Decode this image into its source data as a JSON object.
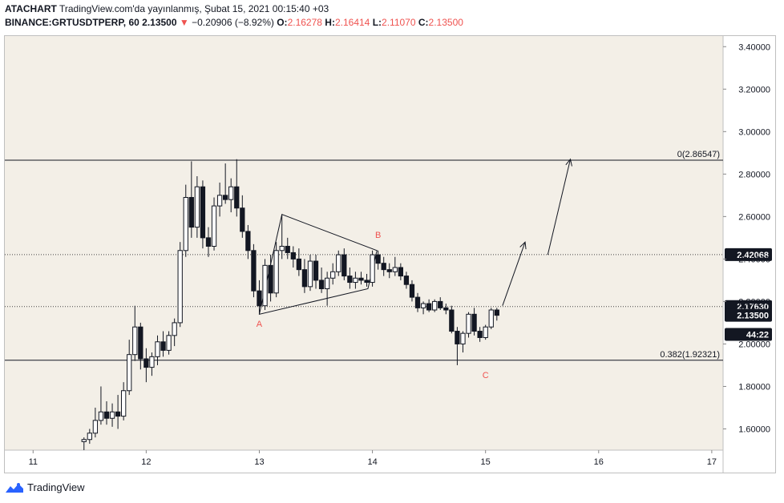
{
  "header": {
    "author": "ATACHART",
    "publish_text": "TradingView.com'da yayınlanmış, Şubat 15, 2021 00:15:40 +03",
    "symbol": "BINANCE:GRTUSDTPERP, 60",
    "last": "2.13500",
    "change": "−0.20906 (−8.92%)",
    "o_label": "O:",
    "o_val": "2.16278",
    "h_label": "H:",
    "h_val": "2.16414",
    "l_label": "L:",
    "l_val": "2.11070",
    "c_label": "C:",
    "c_val": "2.13500"
  },
  "footer": {
    "brand": "TradingView"
  },
  "colors": {
    "background": "#f3efe7",
    "candle_up": "#ffffff",
    "candle_down": "#131722",
    "accent_red": "#ef5350"
  },
  "chart_data": {
    "type": "candlestick",
    "x_ticks": [
      {
        "label": "11",
        "t": 11
      },
      {
        "label": "12",
        "t": 12
      },
      {
        "label": "13",
        "t": 13
      },
      {
        "label": "14",
        "t": 14
      },
      {
        "label": "15",
        "t": 15
      },
      {
        "label": "16",
        "t": 16
      },
      {
        "label": "17",
        "t": 17
      }
    ],
    "y_ticks": [
      "1.60000",
      "1.80000",
      "2.00000",
      "2.20000",
      "2.40000",
      "2.60000",
      "2.80000",
      "3.00000",
      "3.20000",
      "3.40000"
    ],
    "ylim": [
      1.5,
      3.45
    ],
    "xlim": [
      10.75,
      17.1
    ],
    "hlines": [
      {
        "value": 2.86547,
        "style": "solid",
        "label": "0(2.86547)"
      },
      {
        "value": 1.92321,
        "style": "solid",
        "label": "0.382(1.92321)"
      },
      {
        "value": 2.42068,
        "style": "dotted",
        "price_label": "2.42068"
      },
      {
        "value": 2.1763,
        "style": "dotted",
        "price_label": "2.17630"
      }
    ],
    "price_labels": [
      {
        "value": 2.135,
        "label": "2.13500"
      },
      {
        "value": 2.045,
        "label": "44:22",
        "note": "countdown"
      }
    ],
    "wave_labels": [
      {
        "label": "A",
        "t": 13.0,
        "y": 2.08
      },
      {
        "label": "B",
        "t": 14.05,
        "y": 2.5
      },
      {
        "label": "C",
        "t": 15.0,
        "y": 1.84
      }
    ],
    "triangle": [
      {
        "t": 13.0,
        "y": 2.14
      },
      {
        "t": 13.2,
        "y": 2.61
      },
      {
        "t": 14.04,
        "y": 2.44
      },
      {
        "t": 13.96,
        "y": 2.26
      }
    ],
    "projection_arrows": [
      {
        "from": {
          "t": 15.15,
          "y": 2.18
        },
        "to": {
          "t": 15.35,
          "y": 2.48
        }
      },
      {
        "from": {
          "t": 15.55,
          "y": 2.42
        },
        "to": {
          "t": 15.75,
          "y": 2.87
        }
      }
    ],
    "candles": [
      {
        "t": 11.45,
        "o": 1.54,
        "h": 1.56,
        "l": 1.5,
        "c": 1.55
      },
      {
        "t": 11.5,
        "o": 1.55,
        "h": 1.6,
        "l": 1.53,
        "c": 1.58
      },
      {
        "t": 11.55,
        "o": 1.58,
        "h": 1.7,
        "l": 1.56,
        "c": 1.64
      },
      {
        "t": 11.6,
        "o": 1.64,
        "h": 1.8,
        "l": 1.62,
        "c": 1.68
      },
      {
        "t": 11.65,
        "o": 1.68,
        "h": 1.73,
        "l": 1.62,
        "c": 1.65
      },
      {
        "t": 11.7,
        "o": 1.65,
        "h": 1.72,
        "l": 1.61,
        "c": 1.68
      },
      {
        "t": 11.75,
        "o": 1.68,
        "h": 1.76,
        "l": 1.6,
        "c": 1.66
      },
      {
        "t": 11.8,
        "o": 1.66,
        "h": 1.82,
        "l": 1.64,
        "c": 1.78
      },
      {
        "t": 11.85,
        "o": 1.78,
        "h": 2.02,
        "l": 1.76,
        "c": 1.95
      },
      {
        "t": 11.9,
        "o": 1.95,
        "h": 2.18,
        "l": 1.92,
        "c": 2.08
      },
      {
        "t": 11.95,
        "o": 2.08,
        "h": 2.1,
        "l": 1.88,
        "c": 1.93
      },
      {
        "t": 12.0,
        "o": 1.93,
        "h": 1.98,
        "l": 1.82,
        "c": 1.89
      },
      {
        "t": 12.05,
        "o": 1.89,
        "h": 1.96,
        "l": 1.85,
        "c": 1.94
      },
      {
        "t": 12.1,
        "o": 1.94,
        "h": 2.04,
        "l": 1.9,
        "c": 2.01
      },
      {
        "t": 12.15,
        "o": 2.01,
        "h": 2.06,
        "l": 1.94,
        "c": 1.97
      },
      {
        "t": 12.2,
        "o": 1.97,
        "h": 2.06,
        "l": 1.95,
        "c": 2.04
      },
      {
        "t": 12.25,
        "o": 2.04,
        "h": 2.12,
        "l": 1.99,
        "c": 2.1
      },
      {
        "t": 12.3,
        "o": 2.1,
        "h": 2.48,
        "l": 2.08,
        "c": 2.44
      },
      {
        "t": 12.35,
        "o": 2.44,
        "h": 2.75,
        "l": 2.41,
        "c": 2.69
      },
      {
        "t": 12.4,
        "o": 2.69,
        "h": 2.86,
        "l": 2.5,
        "c": 2.55
      },
      {
        "t": 12.45,
        "o": 2.55,
        "h": 2.79,
        "l": 2.5,
        "c": 2.74
      },
      {
        "t": 12.5,
        "o": 2.74,
        "h": 2.77,
        "l": 2.45,
        "c": 2.5
      },
      {
        "t": 12.55,
        "o": 2.5,
        "h": 2.55,
        "l": 2.41,
        "c": 2.46
      },
      {
        "t": 12.6,
        "o": 2.46,
        "h": 2.69,
        "l": 2.44,
        "c": 2.65
      },
      {
        "t": 12.65,
        "o": 2.65,
        "h": 2.76,
        "l": 2.6,
        "c": 2.7
      },
      {
        "t": 12.7,
        "o": 2.7,
        "h": 2.85,
        "l": 2.66,
        "c": 2.68
      },
      {
        "t": 12.75,
        "o": 2.68,
        "h": 2.78,
        "l": 2.62,
        "c": 2.74
      },
      {
        "t": 12.8,
        "o": 2.74,
        "h": 2.87,
        "l": 2.6,
        "c": 2.64
      },
      {
        "t": 12.85,
        "o": 2.64,
        "h": 2.7,
        "l": 2.5,
        "c": 2.53
      },
      {
        "t": 12.9,
        "o": 2.53,
        "h": 2.56,
        "l": 2.4,
        "c": 2.44
      },
      {
        "t": 12.95,
        "o": 2.44,
        "h": 2.47,
        "l": 2.22,
        "c": 2.25
      },
      {
        "t": 13.0,
        "o": 2.25,
        "h": 2.3,
        "l": 2.14,
        "c": 2.18
      },
      {
        "t": 13.05,
        "o": 2.18,
        "h": 2.4,
        "l": 2.16,
        "c": 2.37
      },
      {
        "t": 13.1,
        "o": 2.37,
        "h": 2.42,
        "l": 2.2,
        "c": 2.24
      },
      {
        "t": 13.15,
        "o": 2.24,
        "h": 2.48,
        "l": 2.22,
        "c": 2.44
      },
      {
        "t": 13.2,
        "o": 2.44,
        "h": 2.61,
        "l": 2.4,
        "c": 2.46
      },
      {
        "t": 13.25,
        "o": 2.46,
        "h": 2.5,
        "l": 2.4,
        "c": 2.43
      },
      {
        "t": 13.3,
        "o": 2.43,
        "h": 2.46,
        "l": 2.36,
        "c": 2.4
      },
      {
        "t": 13.35,
        "o": 2.4,
        "h": 2.45,
        "l": 2.32,
        "c": 2.35
      },
      {
        "t": 13.4,
        "o": 2.35,
        "h": 2.4,
        "l": 2.24,
        "c": 2.27
      },
      {
        "t": 13.45,
        "o": 2.27,
        "h": 2.42,
        "l": 2.25,
        "c": 2.39
      },
      {
        "t": 13.5,
        "o": 2.39,
        "h": 2.42,
        "l": 2.26,
        "c": 2.3
      },
      {
        "t": 13.55,
        "o": 2.3,
        "h": 2.36,
        "l": 2.24,
        "c": 2.26
      },
      {
        "t": 13.6,
        "o": 2.26,
        "h": 2.34,
        "l": 2.18,
        "c": 2.31
      },
      {
        "t": 13.65,
        "o": 2.31,
        "h": 2.38,
        "l": 2.28,
        "c": 2.34
      },
      {
        "t": 13.7,
        "o": 2.34,
        "h": 2.44,
        "l": 2.32,
        "c": 2.42
      },
      {
        "t": 13.75,
        "o": 2.42,
        "h": 2.45,
        "l": 2.3,
        "c": 2.32
      },
      {
        "t": 13.8,
        "o": 2.32,
        "h": 2.36,
        "l": 2.26,
        "c": 2.29
      },
      {
        "t": 13.85,
        "o": 2.29,
        "h": 2.34,
        "l": 2.26,
        "c": 2.31
      },
      {
        "t": 13.9,
        "o": 2.31,
        "h": 2.34,
        "l": 2.28,
        "c": 2.3
      },
      {
        "t": 13.95,
        "o": 2.3,
        "h": 2.33,
        "l": 2.27,
        "c": 2.29
      },
      {
        "t": 14.0,
        "o": 2.29,
        "h": 2.44,
        "l": 2.27,
        "c": 2.42
      },
      {
        "t": 14.05,
        "o": 2.42,
        "h": 2.44,
        "l": 2.35,
        "c": 2.38
      },
      {
        "t": 14.1,
        "o": 2.38,
        "h": 2.41,
        "l": 2.32,
        "c": 2.35
      },
      {
        "t": 14.15,
        "o": 2.35,
        "h": 2.38,
        "l": 2.31,
        "c": 2.34
      },
      {
        "t": 14.2,
        "o": 2.34,
        "h": 2.41,
        "l": 2.32,
        "c": 2.36
      },
      {
        "t": 14.25,
        "o": 2.36,
        "h": 2.38,
        "l": 2.3,
        "c": 2.32
      },
      {
        "t": 14.3,
        "o": 2.32,
        "h": 2.34,
        "l": 2.26,
        "c": 2.28
      },
      {
        "t": 14.35,
        "o": 2.28,
        "h": 2.3,
        "l": 2.2,
        "c": 2.22
      },
      {
        "t": 14.4,
        "o": 2.22,
        "h": 2.24,
        "l": 2.15,
        "c": 2.17
      },
      {
        "t": 14.45,
        "o": 2.17,
        "h": 2.2,
        "l": 2.14,
        "c": 2.19
      },
      {
        "t": 14.5,
        "o": 2.19,
        "h": 2.21,
        "l": 2.15,
        "c": 2.16
      },
      {
        "t": 14.55,
        "o": 2.16,
        "h": 2.21,
        "l": 2.15,
        "c": 2.2
      },
      {
        "t": 14.6,
        "o": 2.2,
        "h": 2.22,
        "l": 2.16,
        "c": 2.17
      },
      {
        "t": 14.65,
        "o": 2.17,
        "h": 2.19,
        "l": 2.14,
        "c": 2.16
      },
      {
        "t": 14.7,
        "o": 2.16,
        "h": 2.18,
        "l": 2.05,
        "c": 2.06
      },
      {
        "t": 14.75,
        "o": 2.06,
        "h": 2.08,
        "l": 1.9,
        "c": 2.0
      },
      {
        "t": 14.8,
        "o": 2.0,
        "h": 2.06,
        "l": 1.96,
        "c": 2.05
      },
      {
        "t": 14.85,
        "o": 2.05,
        "h": 2.15,
        "l": 2.03,
        "c": 2.14
      },
      {
        "t": 14.9,
        "o": 2.14,
        "h": 2.17,
        "l": 2.04,
        "c": 2.06
      },
      {
        "t": 14.95,
        "o": 2.06,
        "h": 2.08,
        "l": 2.01,
        "c": 2.03
      },
      {
        "t": 15.0,
        "o": 2.03,
        "h": 2.09,
        "l": 2.02,
        "c": 2.08
      },
      {
        "t": 15.05,
        "o": 2.08,
        "h": 2.17,
        "l": 2.07,
        "c": 2.16
      },
      {
        "t": 15.1,
        "o": 2.16,
        "h": 2.17,
        "l": 2.11,
        "c": 2.135
      }
    ]
  }
}
